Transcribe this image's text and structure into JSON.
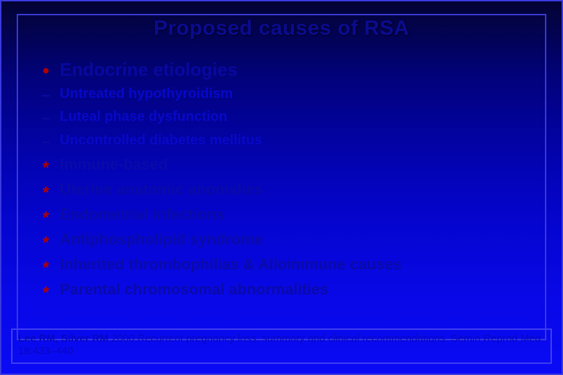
{
  "slide": {
    "title": "Proposed causes of RSA",
    "background_colors": [
      "#030333",
      "#02027a",
      "#0303b5",
      "#0505d0",
      "#0808e8",
      "#0a0af5"
    ],
    "border_color": "#3a3ae0",
    "items": [
      {
        "bullet": "disc",
        "text": "Endocrine etiologies",
        "style": "head"
      },
      {
        "bullet": "dash",
        "text": "Untreated hypothyroidism",
        "style": "sub"
      },
      {
        "bullet": "dash",
        "text": "Luteal phase dysfunction",
        "style": "sub"
      },
      {
        "bullet": "dash",
        "text": "Uncontrolled diabetes mellitus",
        "style": "sub"
      },
      {
        "bullet": "star",
        "text": "Immune-based",
        "style": "normal"
      },
      {
        "bullet": "star",
        "text": "Uterine anatomic anomalies",
        "style": "normal"
      },
      {
        "bullet": "star",
        "text": "Endometrial infections",
        "style": "normal"
      },
      {
        "bullet": "star",
        "text": "Antiphospholipid syndrome",
        "style": "normal"
      },
      {
        "bullet": "star",
        "text": "Inherited thrombophilias & Alloimmune causes",
        "style": "normal"
      },
      {
        "bullet": "star",
        "text": "Parental chromosomal abnormalities",
        "style": "normal"
      }
    ],
    "citation": {
      "authors": "Lee RM, Silver RM",
      "rest": " 2000 Recurrent pregnancy loss: summary and clinical recommendations. Semin Reprod Med 18:433–440"
    },
    "font": {
      "body_size": 22,
      "head_size": 26,
      "sub_size": 20,
      "cite_size": 15
    },
    "text_colors": {
      "title": "#0b0b90",
      "body": "#0a0aa8",
      "sub": "#0808c8",
      "cite": "#0606c0"
    },
    "bullet_colors": {
      "disc": "#b00000",
      "dash": "#0b0ba0",
      "star": "#b00000"
    }
  }
}
